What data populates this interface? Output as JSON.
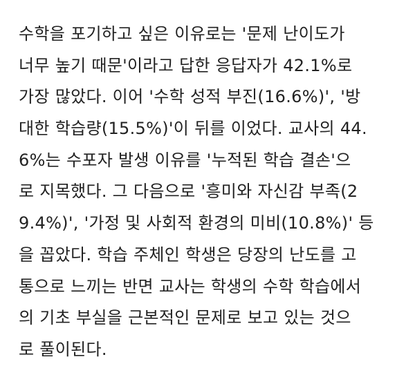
{
  "article": {
    "lines": [
      "수학을 포기하고 싶은 이유로는 '문제 난이도가",
      "너무 높기 때문'이라고 답한 응답자가 42.1%로",
      "가장 많았다. 이어 '수학 성적 부진(16.6%)', '방",
      "대한 학습량(15.5%)'이 뒤를 이었다. 교사의 44.",
      "6%는 수포자 발생 이유를 '누적된 학습 결손'으",
      "로 지목했다. 그 다음으로 '흥미와 자신감 부족(2",
      "9.4%)', '가정 및 사회적 환경의 미비(10.8%)' 등",
      "을 꼽았다. 학습 주체인 학생은 당장의 난도를 고",
      "통으로 느끼는 반면 교사는 학생의 수학 학습에서",
      "의 기초 부실을 근본적인 문제로 보고 있는 것으",
      "로 풀이된다."
    ]
  }
}
